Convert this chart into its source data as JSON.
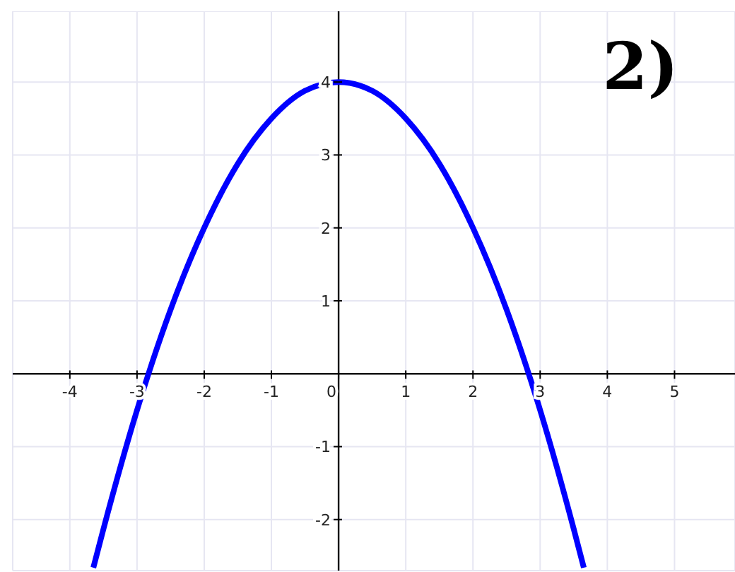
{
  "chart_data": {
    "type": "line",
    "x": [
      -3.65,
      -3.5,
      -3,
      -2.5,
      -2,
      -1.5,
      -1,
      -0.5,
      0,
      0.5,
      1,
      1.5,
      2,
      2.5,
      3,
      3.5,
      3.65
    ],
    "values": [
      -2.66,
      -2.13,
      -0.5,
      0.88,
      2,
      2.88,
      3.5,
      3.88,
      4,
      3.88,
      3.5,
      2.88,
      2,
      0.88,
      -0.5,
      -2.13,
      -2.66
    ],
    "color": "#0000ff",
    "xlim": [
      -4.85,
      5.9
    ],
    "ylim": [
      -2.7,
      4.97
    ],
    "xticks": [
      -4,
      -3,
      -2,
      -1,
      0,
      1,
      2,
      3,
      4,
      5
    ],
    "yticks": [
      -2,
      -1,
      1,
      2,
      3,
      4
    ],
    "grid": true,
    "marker": "none",
    "line_style": "solid",
    "annotations": [
      "2)"
    ]
  }
}
